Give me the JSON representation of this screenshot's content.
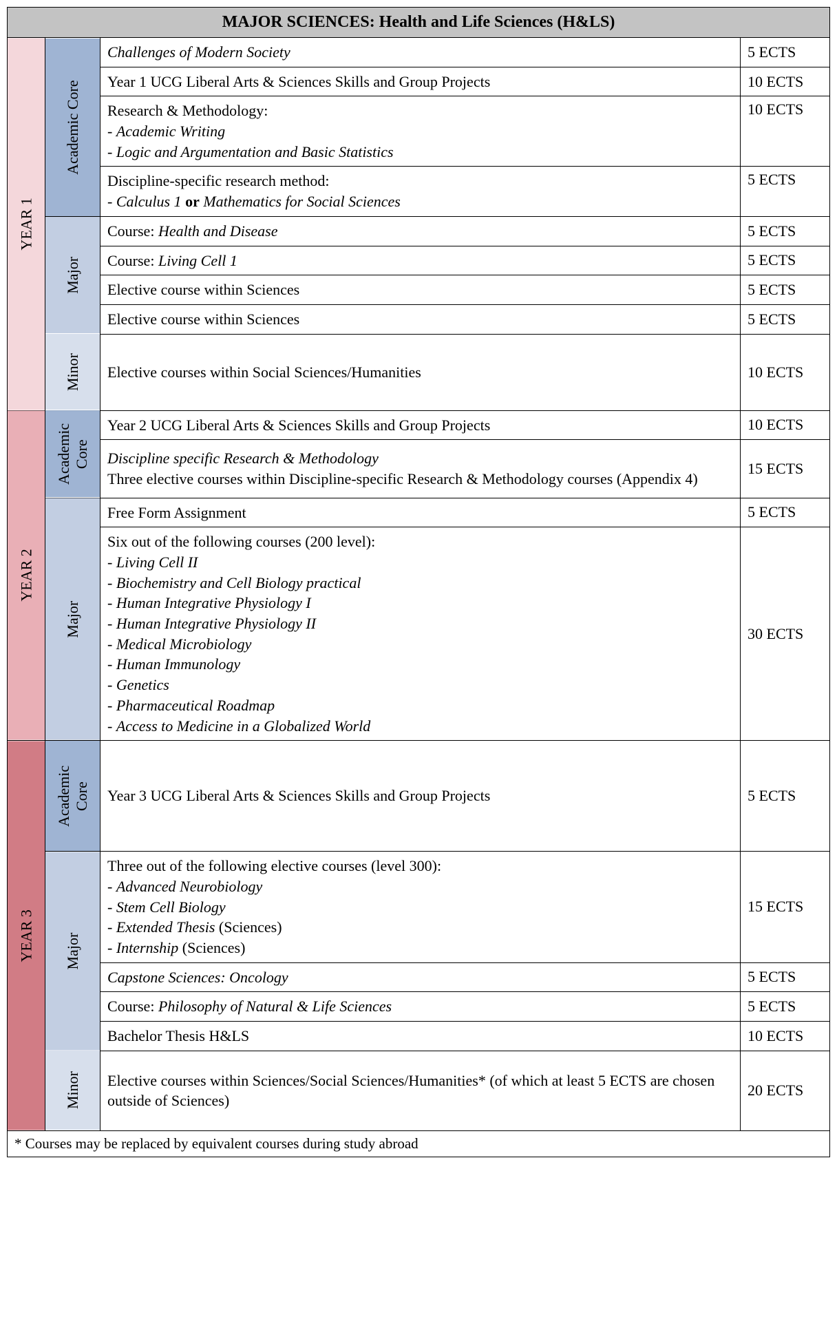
{
  "header": "MAJOR SCIENCES: Health and Life Sciences (H&LS)",
  "colors": {
    "header_bg": "#c3c3c3",
    "year1_bg": "#f4d7db",
    "year2_bg": "#e9afb6",
    "year3_bg": "#d17c85",
    "category_dark": "#9fb4d3",
    "category_mid": "#c2cee2",
    "category_light": "#d7dfec",
    "border": "#000000",
    "text": "#000000"
  },
  "years": {
    "y1": {
      "label": "YEAR 1"
    },
    "y2": {
      "label": "YEAR 2"
    },
    "y3": {
      "label": "YEAR 3"
    }
  },
  "cats": {
    "academic_core": "Academic Core",
    "major": "Major",
    "minor": "Minor"
  },
  "rows": {
    "y1_core_1": {
      "desc": "<em>Challenges of Modern Society</em>",
      "ects": "5 ECTS"
    },
    "y1_core_2": {
      "desc": "Year 1 UCG Liberal Arts & Sciences Skills and Group Projects",
      "ects": "10 ECTS"
    },
    "y1_core_3": {
      "desc": "Research & Methodology:<br>- <em>Academic Writing</em><br>- <em>Logic and Argumentation and Basic Statistics</em>",
      "ects": "10 ECTS"
    },
    "y1_core_4": {
      "desc": "Discipline-specific research method:<br>- <em>Calculus 1 </em><strong>or</strong><em> Mathematics for Social Sciences</em>",
      "ects": "5 ECTS"
    },
    "y1_major_1": {
      "desc": "Course: <em>Health and Disease</em>",
      "ects": "5 ECTS"
    },
    "y1_major_2": {
      "desc": "Course: <em>Living Cell 1</em>",
      "ects": "5 ECTS"
    },
    "y1_major_3": {
      "desc": "Elective course within Sciences",
      "ects": "5 ECTS"
    },
    "y1_major_4": {
      "desc": "Elective course within Sciences",
      "ects": "5 ECTS"
    },
    "y1_minor_1": {
      "desc": "Elective courses within Social Sciences/Humanities",
      "ects": "10 ECTS"
    },
    "y2_core_1": {
      "desc": "Year 2 UCG Liberal Arts & Sciences Skills and Group Projects",
      "ects": "10 ECTS"
    },
    "y2_core_2": {
      "desc": "<em>Discipline specific Research & Methodology</em><br>Three elective courses within Discipline-specific Research & Methodology courses (Appendix 4)",
      "ects": "15 ECTS"
    },
    "y2_major_1": {
      "desc": "Free Form Assignment",
      "ects": "5 ECTS"
    },
    "y2_major_2": {
      "desc": "Six out of the following courses (200 level):<br>- <em>Living Cell II</em><br>- <em>Biochemistry and Cell Biology practical</em><br>- <em>Human Integrative Physiology I</em><br>- <em>Human Integrative Physiology II</em><br>- <em>Medical Microbiology</em><br>- <em>Human Immunology</em><br>- <em>Genetics</em><br>- <em>Pharmaceutical Roadmap</em><br>- <em>Access to Medicine in a Globalized World</em>",
      "ects": "30 ECTS"
    },
    "y3_core_1": {
      "desc": "Year 3 UCG Liberal Arts & Sciences Skills and Group Projects",
      "ects": "5 ECTS"
    },
    "y3_major_1": {
      "desc": "Three out of the following elective courses (level 300):<br>- <em>Advanced Neurobiology</em><br>- <em>Stem Cell Biology</em><br>- <em>Extended Thesis</em> (Sciences)<br>- <em>Internship</em> (Sciences)",
      "ects": "15 ECTS"
    },
    "y3_major_2": {
      "desc": "<em>Capstone Sciences: Oncology</em>",
      "ects": "5 ECTS"
    },
    "y3_major_3": {
      "desc": "Course: <em>Philosophy of Natural & Life Sciences</em>",
      "ects": "5 ECTS"
    },
    "y3_major_4": {
      "desc": "Bachelor Thesis H&LS",
      "ects": "10 ECTS"
    },
    "y3_minor_1": {
      "desc": "Elective courses within Sciences/Social Sciences/Humanities* (of which at least 5 ECTS are chosen outside of Sciences)",
      "ects": "20 ECTS"
    }
  },
  "footnote": "* Courses may be replaced by equivalent courses during study abroad"
}
